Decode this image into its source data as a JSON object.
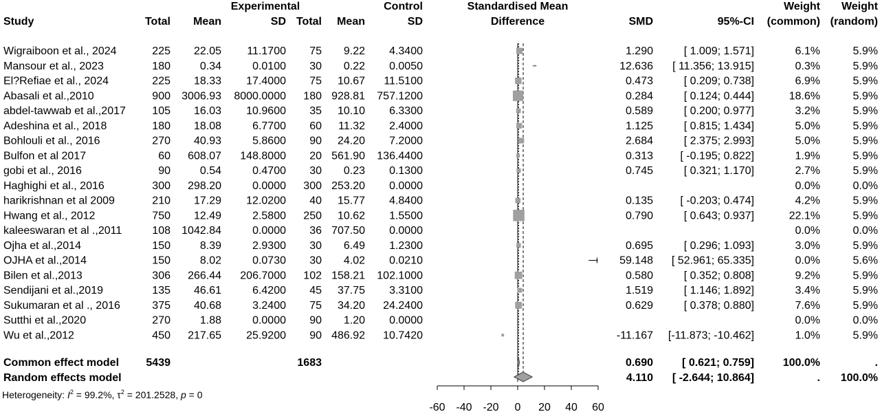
{
  "chart_data": {
    "type": "forest",
    "headers": {
      "study": "Study",
      "experimental": "Experimental",
      "control": "Control",
      "total": "Total",
      "mean": "Mean",
      "sd": "SD",
      "plot_line1": "Standardised Mean",
      "plot_line2": "Difference",
      "smd": "SMD",
      "ci": "95%-CI",
      "weight": "Weight",
      "weight_common": "(common)",
      "weight_random": "(random)"
    },
    "studies": [
      {
        "study": "Wigraiboon et al., 2024",
        "e_total": "225",
        "e_mean": "22.05",
        "e_sd": "11.1700",
        "c_total": "75",
        "c_mean": "9.22",
        "c_sd": "4.3400",
        "smd": 1.29,
        "lo": 1.009,
        "hi": 1.571,
        "smd_txt": "1.290",
        "ci_txt": "[ 1.009;  1.571]",
        "w_common": "6.1%",
        "w_random": "5.9%",
        "wc": 6.1
      },
      {
        "study": "Mansour et al., 2023",
        "e_total": "180",
        "e_mean": "0.34",
        "e_sd": "0.0100",
        "c_total": "30",
        "c_mean": "0.22",
        "c_sd": "0.0050",
        "smd": 12.636,
        "lo": 11.356,
        "hi": 13.915,
        "smd_txt": "12.636",
        "ci_txt": "[ 11.356; 13.915]",
        "w_common": "0.3%",
        "w_random": "5.9%",
        "wc": 0.3
      },
      {
        "study": "El?Refiae et al., 2024",
        "e_total": "225",
        "e_mean": "18.33",
        "e_sd": "17.4000",
        "c_total": "75",
        "c_mean": "10.67",
        "c_sd": "11.5100",
        "smd": 0.473,
        "lo": 0.209,
        "hi": 0.738,
        "smd_txt": "0.473",
        "ci_txt": "[ 0.209;  0.738]",
        "w_common": "6.9%",
        "w_random": "5.9%",
        "wc": 6.9
      },
      {
        "study": "Abasali et al.,2010",
        "e_total": "900",
        "e_mean": "3006.93",
        "e_sd": "8000.0000",
        "c_total": "180",
        "c_mean": "928.81",
        "c_sd": "757.1200",
        "smd": 0.284,
        "lo": 0.124,
        "hi": 0.444,
        "smd_txt": "0.284",
        "ci_txt": "[ 0.124;  0.444]",
        "w_common": "18.6%",
        "w_random": "5.9%",
        "wc": 18.6
      },
      {
        "study": "abdel-tawwab et al.,2017",
        "e_total": "105",
        "e_mean": "16.03",
        "e_sd": "10.9600",
        "c_total": "35",
        "c_mean": "10.10",
        "c_sd": "6.3300",
        "smd": 0.589,
        "lo": 0.2,
        "hi": 0.977,
        "smd_txt": "0.589",
        "ci_txt": "[ 0.200;  0.977]",
        "w_common": "3.2%",
        "w_random": "5.9%",
        "wc": 3.2
      },
      {
        "study": "Adeshina et al., 2018",
        "e_total": "180",
        "e_mean": "18.08",
        "e_sd": "6.7700",
        "c_total": "60",
        "c_mean": "11.32",
        "c_sd": "2.4000",
        "smd": 1.125,
        "lo": 0.815,
        "hi": 1.434,
        "smd_txt": "1.125",
        "ci_txt": "[ 0.815;  1.434]",
        "w_common": "5.0%",
        "w_random": "5.9%",
        "wc": 5.0
      },
      {
        "study": "Bohlouli et al., 2016",
        "e_total": "270",
        "e_mean": "40.93",
        "e_sd": "5.8600",
        "c_total": "90",
        "c_mean": "24.20",
        "c_sd": "7.2000",
        "smd": 2.684,
        "lo": 2.375,
        "hi": 2.993,
        "smd_txt": "2.684",
        "ci_txt": "[ 2.375;  2.993]",
        "w_common": "5.0%",
        "w_random": "5.9%",
        "wc": 5.0
      },
      {
        "study": "Bulfon et al 2017",
        "e_total": "60",
        "e_mean": "608.07",
        "e_sd": "148.8000",
        "c_total": "20",
        "c_mean": "561.90",
        "c_sd": "136.4400",
        "smd": 0.313,
        "lo": -0.195,
        "hi": 0.822,
        "smd_txt": "0.313",
        "ci_txt": "[ -0.195;  0.822]",
        "w_common": "1.9%",
        "w_random": "5.9%",
        "wc": 1.9
      },
      {
        "study": "gobi et al., 2016",
        "e_total": "90",
        "e_mean": "0.54",
        "e_sd": "0.4700",
        "c_total": "30",
        "c_mean": "0.23",
        "c_sd": "0.1300",
        "smd": 0.745,
        "lo": 0.321,
        "hi": 1.17,
        "smd_txt": "0.745",
        "ci_txt": "[ 0.321;  1.170]",
        "w_common": "2.7%",
        "w_random": "5.9%",
        "wc": 2.7
      },
      {
        "study": "Haghighi et al., 2016",
        "e_total": "300",
        "e_mean": "298.20",
        "e_sd": "0.0000",
        "c_total": "300",
        "c_mean": "253.20",
        "c_sd": "0.0000",
        "smd": null,
        "lo": null,
        "hi": null,
        "smd_txt": "",
        "ci_txt": "",
        "w_common": "0.0%",
        "w_random": "0.0%",
        "wc": 0
      },
      {
        "study": "harikrishnan et al 2009",
        "e_total": "210",
        "e_mean": "17.29",
        "e_sd": "12.0200",
        "c_total": "40",
        "c_mean": "15.77",
        "c_sd": "4.8400",
        "smd": 0.135,
        "lo": -0.203,
        "hi": 0.474,
        "smd_txt": "0.135",
        "ci_txt": "[ -0.203;  0.474]",
        "w_common": "4.2%",
        "w_random": "5.9%",
        "wc": 4.2
      },
      {
        "study": "Hwang et al., 2012",
        "e_total": "750",
        "e_mean": "12.49",
        "e_sd": "2.5800",
        "c_total": "250",
        "c_mean": "10.62",
        "c_sd": "1.5500",
        "smd": 0.79,
        "lo": 0.643,
        "hi": 0.937,
        "smd_txt": "0.790",
        "ci_txt": "[ 0.643;  0.937]",
        "w_common": "22.1%",
        "w_random": "5.9%",
        "wc": 22.1
      },
      {
        "study": "kaleeswaran et al .,2011",
        "e_total": "108",
        "e_mean": "1042.84",
        "e_sd": "0.0000",
        "c_total": "36",
        "c_mean": "707.50",
        "c_sd": "0.0000",
        "smd": null,
        "lo": null,
        "hi": null,
        "smd_txt": "",
        "ci_txt": "",
        "w_common": "0.0%",
        "w_random": "0.0%",
        "wc": 0
      },
      {
        "study": "Ojha et al.,2014",
        "e_total": "150",
        "e_mean": "8.39",
        "e_sd": "2.9300",
        "c_total": "30",
        "c_mean": "6.49",
        "c_sd": "1.2300",
        "smd": 0.695,
        "lo": 0.296,
        "hi": 1.093,
        "smd_txt": "0.695",
        "ci_txt": "[ 0.296;  1.093]",
        "w_common": "3.0%",
        "w_random": "5.9%",
        "wc": 3.0
      },
      {
        "study": "OJHA et al.,2014",
        "e_total": "150",
        "e_mean": "8.02",
        "e_sd": "0.0730",
        "c_total": "30",
        "c_mean": "4.02",
        "c_sd": "0.0210",
        "smd": 59.148,
        "lo": 52.961,
        "hi": 65.335,
        "smd_txt": "59.148",
        "ci_txt": "[ 52.961; 65.335]",
        "w_common": "0.0%",
        "w_random": "5.6%",
        "wc": 0
      },
      {
        "study": "Bilen et al.,2013",
        "e_total": "306",
        "e_mean": "266.44",
        "e_sd": "206.7000",
        "c_total": "102",
        "c_mean": "158.21",
        "c_sd": "102.1000",
        "smd": 0.58,
        "lo": 0.352,
        "hi": 0.808,
        "smd_txt": "0.580",
        "ci_txt": "[ 0.352;  0.808]",
        "w_common": "9.2%",
        "w_random": "5.9%",
        "wc": 9.2
      },
      {
        "study": "Sendijani et al.,2019",
        "e_total": "135",
        "e_mean": "46.61",
        "e_sd": "6.4200",
        "c_total": "45",
        "c_mean": "37.75",
        "c_sd": "3.3100",
        "smd": 1.519,
        "lo": 1.146,
        "hi": 1.892,
        "smd_txt": "1.519",
        "ci_txt": "[ 1.146;  1.892]",
        "w_common": "3.4%",
        "w_random": "5.9%",
        "wc": 3.4
      },
      {
        "study": "Sukumaran et al ., 2016",
        "e_total": "375",
        "e_mean": "40.68",
        "e_sd": "3.2400",
        "c_total": "75",
        "c_mean": "34.20",
        "c_sd": "24.2400",
        "smd": 0.629,
        "lo": 0.378,
        "hi": 0.88,
        "smd_txt": "0.629",
        "ci_txt": "[ 0.378;  0.880]",
        "w_common": "7.6%",
        "w_random": "5.9%",
        "wc": 7.6
      },
      {
        "study": "Sutthi et al.,2020",
        "e_total": "270",
        "e_mean": "1.88",
        "e_sd": "0.0000",
        "c_total": "90",
        "c_mean": "1.20",
        "c_sd": "0.0000",
        "smd": null,
        "lo": null,
        "hi": null,
        "smd_txt": "",
        "ci_txt": "",
        "w_common": "0.0%",
        "w_random": "0.0%",
        "wc": 0
      },
      {
        "study": "Wu et al.,2012",
        "e_total": "450",
        "e_mean": "217.65",
        "e_sd": "25.9200",
        "c_total": "90",
        "c_mean": "486.92",
        "c_sd": "10.7420",
        "smd": -11.167,
        "lo": -11.873,
        "hi": -10.462,
        "smd_txt": "-11.167",
        "ci_txt": "[-11.873; -10.462]",
        "w_common": "1.0%",
        "w_random": "5.9%",
        "wc": 1.0
      }
    ],
    "common": {
      "label": "Common effect model",
      "e_total": "5439",
      "c_total": "1683",
      "smd": 0.69,
      "lo": 0.621,
      "hi": 0.759,
      "smd_txt": "0.690",
      "ci_txt": "[ 0.621;  0.759]",
      "w_common": "100.0%",
      "w_random": "."
    },
    "random": {
      "label": "Random effects model",
      "smd": 4.11,
      "lo": -2.644,
      "hi": 10.864,
      "smd_txt": "4.110",
      "ci_txt": "[ -2.644;  10.864]",
      "w_common": ".",
      "w_random": "100.0%"
    },
    "heterogeneity": {
      "prefix": "Heterogeneity: ",
      "i2_sym": "I",
      "i2_val": " = 99.2%, ",
      "tau2_sym": "τ",
      "tau2_val": " = 201.2528, ",
      "p_sym": "p",
      "p_val": " = 0"
    },
    "xaxis": {
      "ticks": [
        -60,
        -40,
        -20,
        0,
        20,
        40,
        60
      ],
      "xlim": [
        -60,
        60
      ]
    }
  }
}
